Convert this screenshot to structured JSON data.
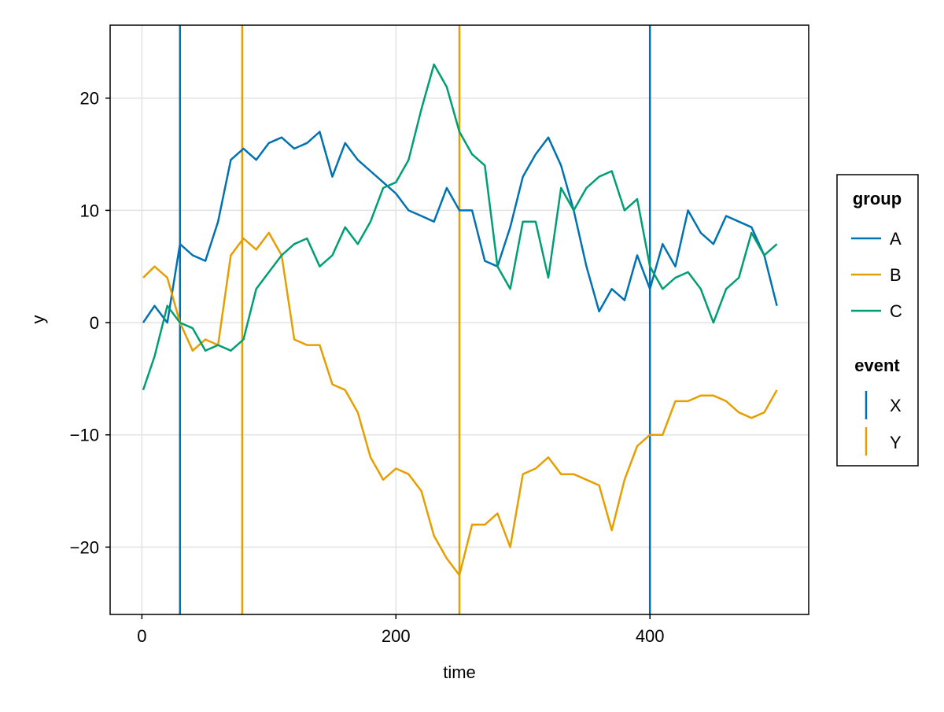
{
  "chart_data": {
    "type": "line",
    "xlabel": "time",
    "ylabel": "y",
    "xlim": [
      -25,
      525
    ],
    "ylim": [
      -26,
      26.5
    ],
    "xticks": [
      0,
      200,
      400
    ],
    "yticks": [
      -20,
      -10,
      0,
      10,
      20
    ],
    "xtick_labels": [
      "0",
      "200",
      "400"
    ],
    "ytick_labels": [
      "−20",
      "−10",
      "0",
      "10",
      "20"
    ],
    "grid": true,
    "legend": {
      "placement": "right",
      "groups": [
        {
          "title": "group",
          "entries": [
            {
              "label": "A",
              "color": "#0072b2",
              "kind": "line"
            },
            {
              "label": "B",
              "color": "#e69f00",
              "kind": "line"
            },
            {
              "label": "C",
              "color": "#009e73",
              "kind": "line"
            }
          ]
        },
        {
          "title": "event",
          "entries": [
            {
              "label": "X",
              "color": "#0072b2",
              "kind": "vline"
            },
            {
              "label": "Y",
              "color": "#e69f00",
              "kind": "vline"
            }
          ]
        }
      ]
    },
    "series": [
      {
        "name": "A",
        "color": "#0072b2",
        "x": [
          1,
          10,
          20,
          30,
          40,
          50,
          60,
          70,
          80,
          90,
          100,
          110,
          120,
          130,
          140,
          150,
          160,
          170,
          180,
          190,
          200,
          210,
          220,
          230,
          240,
          250,
          260,
          270,
          280,
          290,
          300,
          310,
          320,
          330,
          340,
          350,
          360,
          370,
          380,
          390,
          400,
          410,
          420,
          430,
          440,
          450,
          460,
          470,
          480,
          490,
          500
        ],
        "y": [
          0,
          1.5,
          0,
          7,
          6,
          5.5,
          9,
          14.5,
          15.5,
          14.5,
          16,
          16.5,
          15.5,
          16,
          17,
          13,
          16,
          14.5,
          13.5,
          12.5,
          11.5,
          10,
          9.5,
          9,
          12,
          10,
          10,
          5.5,
          5,
          8.5,
          13,
          15,
          16.5,
          14,
          10,
          5,
          1,
          3,
          2,
          6,
          3,
          7,
          5,
          10,
          8,
          7,
          9.5,
          9,
          8.5,
          6,
          1.5
        ]
      },
      {
        "name": "B",
        "color": "#e69f00",
        "x": [
          1,
          10,
          20,
          30,
          40,
          50,
          60,
          70,
          80,
          90,
          100,
          110,
          120,
          130,
          140,
          150,
          160,
          170,
          180,
          190,
          200,
          210,
          220,
          230,
          240,
          250,
          260,
          270,
          280,
          290,
          300,
          310,
          320,
          330,
          340,
          350,
          360,
          370,
          380,
          390,
          400,
          410,
          420,
          430,
          440,
          450,
          460,
          470,
          480,
          490,
          500
        ],
        "y": [
          4,
          5,
          4,
          0,
          -2.5,
          -1.5,
          -2,
          6,
          7.5,
          6.5,
          8,
          6,
          -1.5,
          -2,
          -2,
          -5.5,
          -6,
          -8,
          -12,
          -14,
          -13,
          -13.5,
          -15,
          -19,
          -21,
          -22.5,
          -18,
          -18,
          -17,
          -20,
          -13.5,
          -13,
          -12,
          -13.5,
          -13.5,
          -14,
          -14.5,
          -18.5,
          -14,
          -11,
          -10,
          -10,
          -7,
          -7,
          -6.5,
          -6.5,
          -7,
          -8,
          -8.5,
          -8,
          -6
        ]
      },
      {
        "name": "C",
        "color": "#009e73",
        "x": [
          1,
          10,
          20,
          30,
          40,
          50,
          60,
          70,
          80,
          90,
          100,
          110,
          120,
          130,
          140,
          150,
          160,
          170,
          180,
          190,
          200,
          210,
          220,
          230,
          240,
          250,
          260,
          270,
          280,
          290,
          300,
          310,
          320,
          330,
          340,
          350,
          360,
          370,
          380,
          390,
          400,
          410,
          420,
          430,
          440,
          450,
          460,
          470,
          480,
          490,
          500
        ],
        "y": [
          -6,
          -3,
          1.5,
          0,
          -0.5,
          -2.5,
          -2,
          -2.5,
          -1.5,
          3,
          4.5,
          6,
          7,
          7.5,
          5,
          6,
          8.5,
          7,
          9,
          12,
          12.5,
          14.5,
          19,
          23,
          21,
          17,
          15,
          14,
          5,
          3,
          9,
          9,
          4,
          12,
          10,
          12,
          13,
          13.5,
          10,
          11,
          5,
          3,
          4,
          4.5,
          3,
          0,
          3,
          4,
          8,
          6,
          7
        ]
      }
    ],
    "events": [
      {
        "name": "X",
        "color": "#0072b2",
        "x": [
          30,
          400
        ]
      },
      {
        "name": "Y",
        "color": "#e69f00",
        "x": [
          79,
          250
        ]
      }
    ]
  }
}
